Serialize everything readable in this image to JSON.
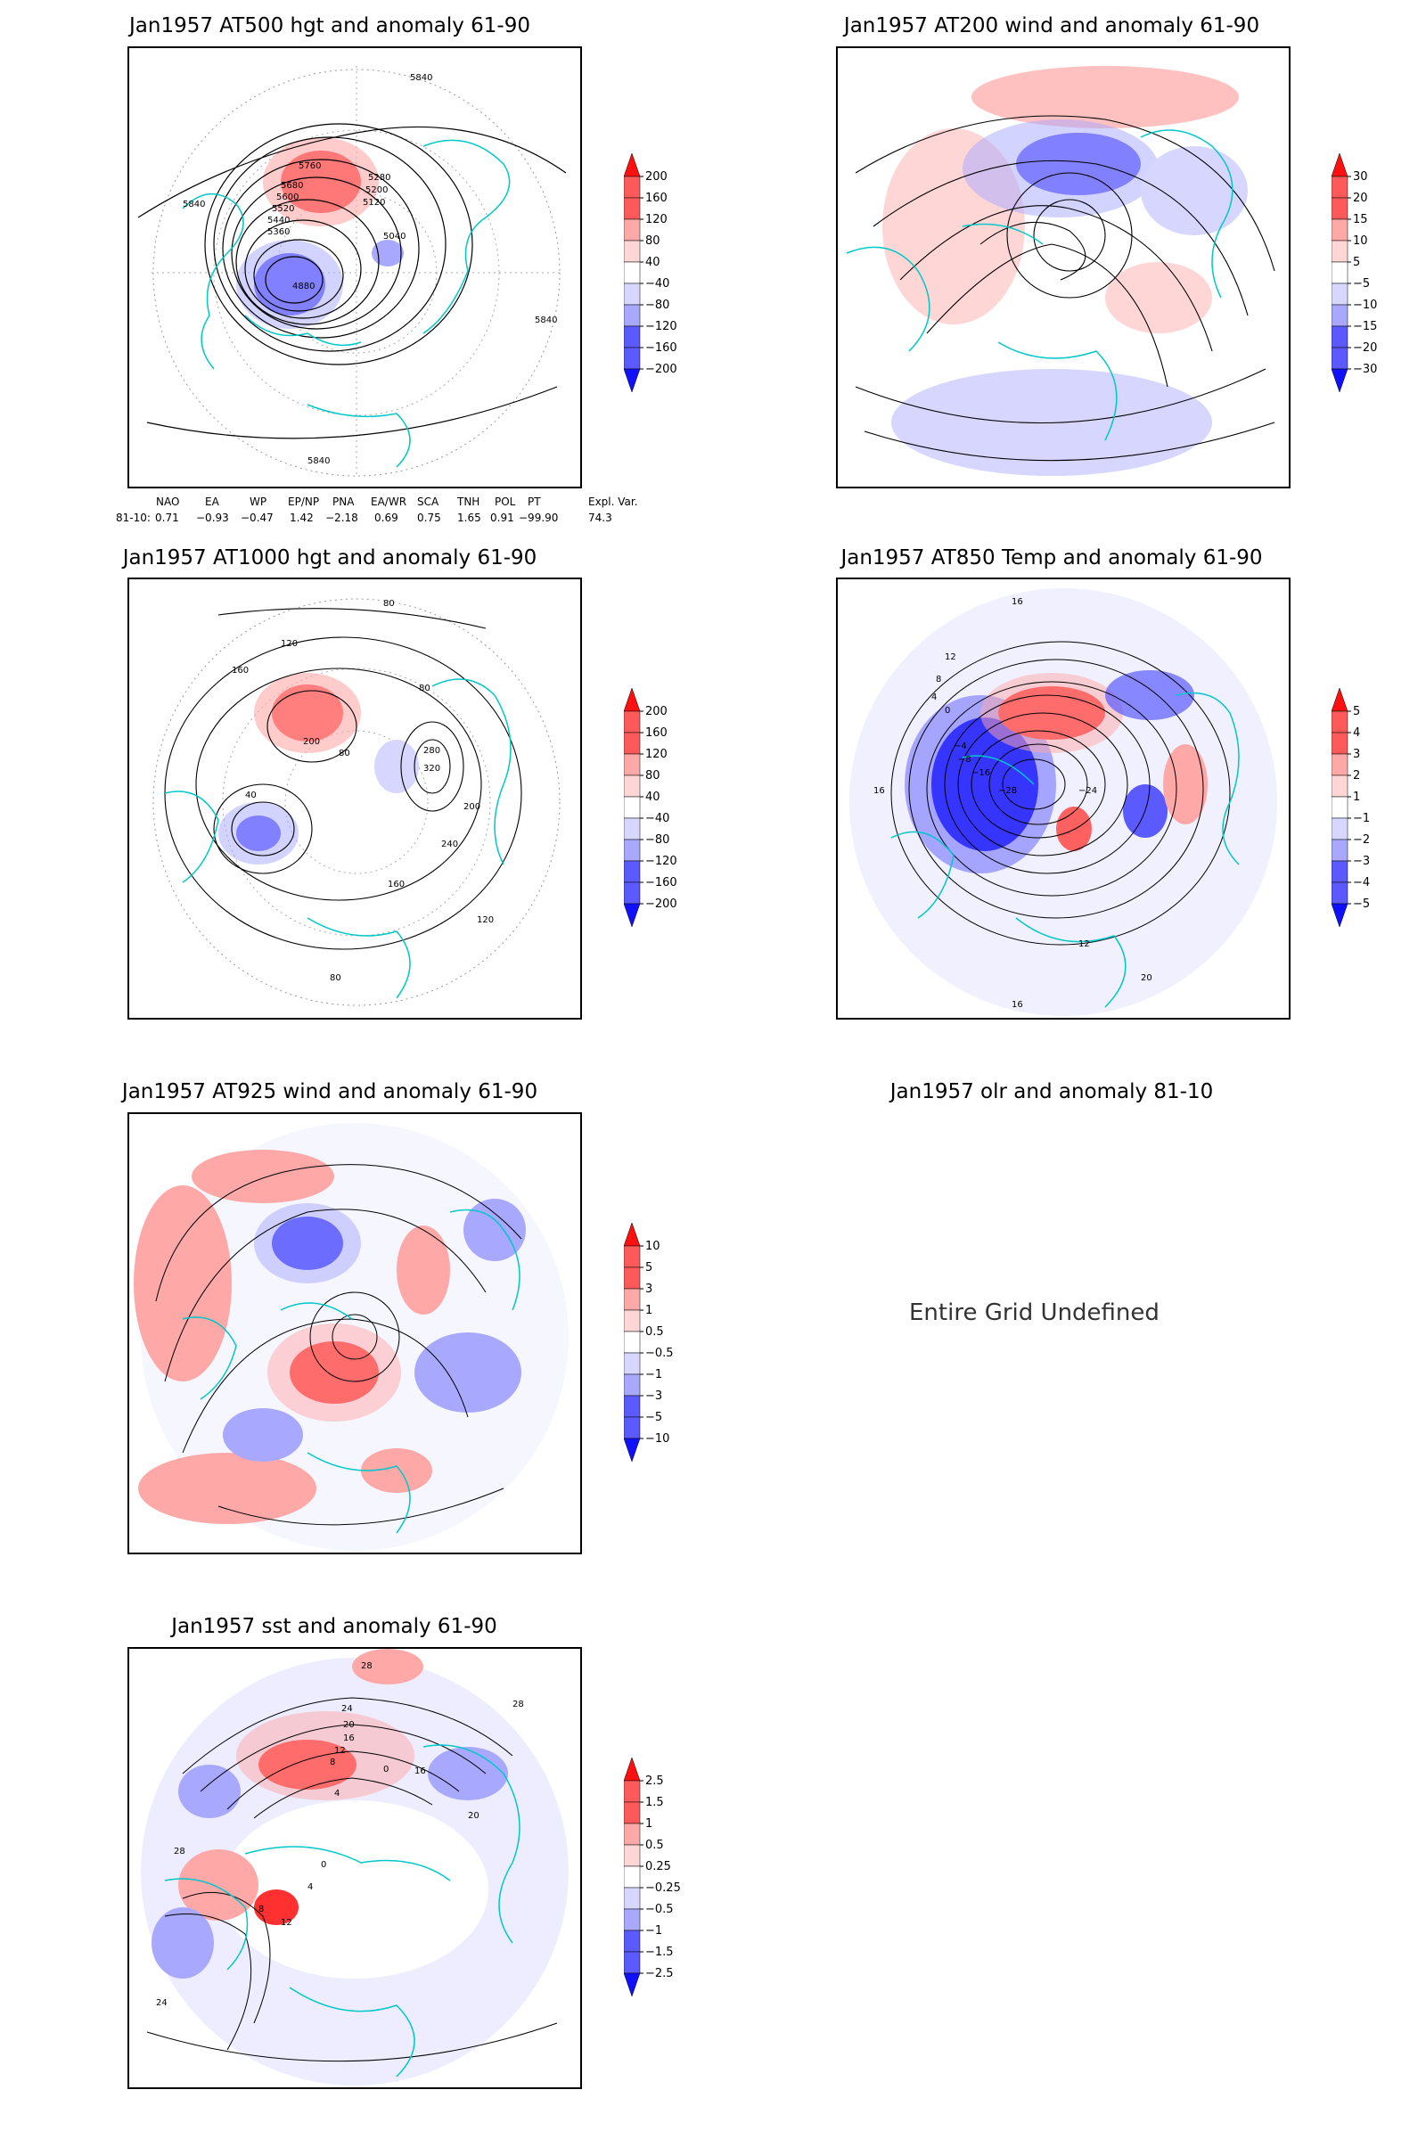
{
  "colors": {
    "neg_strong": "#1010ff",
    "neg_mid": "#5a5aff",
    "neg_light": "#a8a8ff",
    "neg_faint": "#d6d6ff",
    "pos_faint": "#ffd6d6",
    "pos_light": "#ffa8a8",
    "pos_mid": "#ff5a5a",
    "pos_strong": "#ff1010",
    "coast": "#00c8c8",
    "contour": "#000000"
  },
  "panels": [
    {
      "title": "Jan1957 AT500 hgt and anomaly 61-90",
      "contour_labels": [
        "5840",
        "5760",
        "5680",
        "5600",
        "5520",
        "5440",
        "5360",
        "5280",
        "5200",
        "5120",
        "5040",
        "4880",
        "5840",
        "5840",
        "5840"
      ],
      "colorbar": {
        "labels": [
          "200",
          "160",
          "120",
          "80",
          "40",
          "−40",
          "−80",
          "−120",
          "−160",
          "−200"
        ]
      }
    },
    {
      "title": "Jan1957 AT200 wind and anomaly 61-90",
      "contour_labels": [],
      "colorbar": {
        "labels": [
          "30",
          "20",
          "15",
          "10",
          "5",
          "−5",
          "−10",
          "−15",
          "−20",
          "−30"
        ]
      }
    },
    {
      "title": "Jan1957 AT1000 hgt and anomaly 61-90",
      "contour_labels": [
        "80",
        "120",
        "160",
        "200",
        "40",
        "80",
        "280",
        "320",
        "240",
        "200",
        "160",
        "120",
        "80",
        "80"
      ],
      "colorbar": {
        "labels": [
          "200",
          "160",
          "120",
          "80",
          "40",
          "−40",
          "−80",
          "−120",
          "−160",
          "−200"
        ]
      }
    },
    {
      "title": "Jan1957 AT850 Temp and anomaly 61-90",
      "contour_labels": [
        "16",
        "12",
        "8",
        "4",
        "0",
        "−4",
        "−8",
        "−16",
        "−24",
        "−28",
        "16",
        "20",
        "16",
        "12"
      ],
      "colorbar": {
        "labels": [
          "5",
          "4",
          "3",
          "2",
          "1",
          "−1",
          "−2",
          "−3",
          "−4",
          "−5"
        ]
      }
    },
    {
      "title": "Jan1957 AT925 wind and anomaly 61-90",
      "contour_labels": [],
      "colorbar": {
        "labels": [
          "10",
          "5",
          "3",
          "1",
          "0.5",
          "−0.5",
          "−1",
          "−3",
          "−5",
          "−10"
        ]
      }
    },
    {
      "title": "Jan1957 olr and anomaly 81-10",
      "undefined_text": "Entire Grid Undefined"
    },
    {
      "title": "Jan1957 sst and anomaly 61-90",
      "contour_labels": [
        "28",
        "24",
        "20",
        "16",
        "12",
        "8",
        "4",
        "0",
        "28",
        "28",
        "24",
        "20",
        "16",
        "12",
        "8",
        "4",
        "0"
      ],
      "colorbar": {
        "labels": [
          "2.5",
          "1.5",
          "1",
          "0.5",
          "0.25",
          "−0.25",
          "−0.5",
          "−1",
          "−1.5",
          "−2.5"
        ]
      }
    }
  ],
  "indices": {
    "headers": [
      "NAO",
      "EA",
      "WP",
      "EP/NP",
      "PNA",
      "EA/WR",
      "SCA",
      "TNH",
      "POL",
      "PT",
      "Expl. Var."
    ],
    "row_label": "81-10:",
    "values": [
      "0.71",
      "−0.93",
      "−0.47",
      "1.42",
      "−2.18",
      "0.69",
      "0.75",
      "1.65",
      "0.91",
      "−99.90",
      "74.3"
    ]
  }
}
